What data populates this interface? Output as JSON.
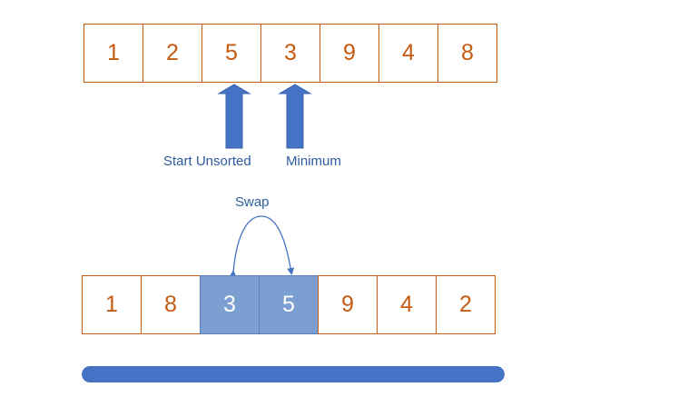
{
  "top_array": {
    "values": [
      "1",
      "2",
      "5",
      "3",
      "9",
      "4",
      "8"
    ]
  },
  "labels": {
    "start_unsorted": "Start Unsorted",
    "minimum": "Minimum",
    "swap": "Swap"
  },
  "bottom_array": {
    "values": [
      "1",
      "8",
      "3",
      "5",
      "9",
      "4",
      "2"
    ],
    "highlighted_indices": [
      2,
      3
    ]
  },
  "arrows": {
    "start_unsorted_index": 2,
    "minimum_index": 3
  },
  "progress_bar": {
    "fraction": 1.0
  },
  "colors": {
    "cell_text": "#c55a11",
    "cell_border": "#c55a11",
    "highlight_fill": "#7a9fd0",
    "arrow_fill": "#4472c4",
    "label_text": "#2e5c9e",
    "progress_fill": "#4472c4"
  }
}
